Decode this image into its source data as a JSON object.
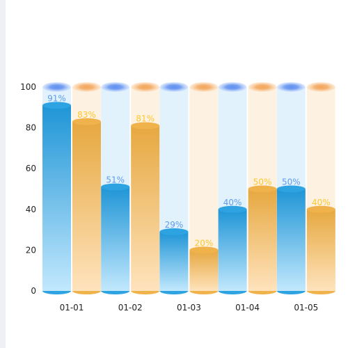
{
  "chart_data": {
    "type": "bar",
    "title": "",
    "xlabel": "",
    "ylabel": "",
    "categories": [
      "01-01",
      "01-02",
      "01-03",
      "01-04",
      "01-05"
    ],
    "ylim": [
      0,
      100
    ],
    "yticks": [
      "0",
      "20",
      "40",
      "60",
      "80",
      "100"
    ],
    "grid": false,
    "legend": "none",
    "series": [
      {
        "values": [
          91,
          51,
          29,
          40,
          50
        ],
        "labels": [
          "91%",
          "51%",
          "29%",
          "40%",
          "50%"
        ],
        "color": "#2ea3e2",
        "label_color": "#5b9cf0",
        "background_color": "#dff1fd",
        "cap_color": "#7aa4f5"
      },
      {
        "values": [
          83,
          81,
          20,
          50,
          40
        ],
        "labels": [
          "83%",
          "81%",
          "20%",
          "50%",
          "40%"
        ],
        "color": "#f0b24a",
        "label_color": "#ffc72a",
        "background_color": "#fdf0df",
        "cap_color": "#f6b870"
      }
    ]
  }
}
